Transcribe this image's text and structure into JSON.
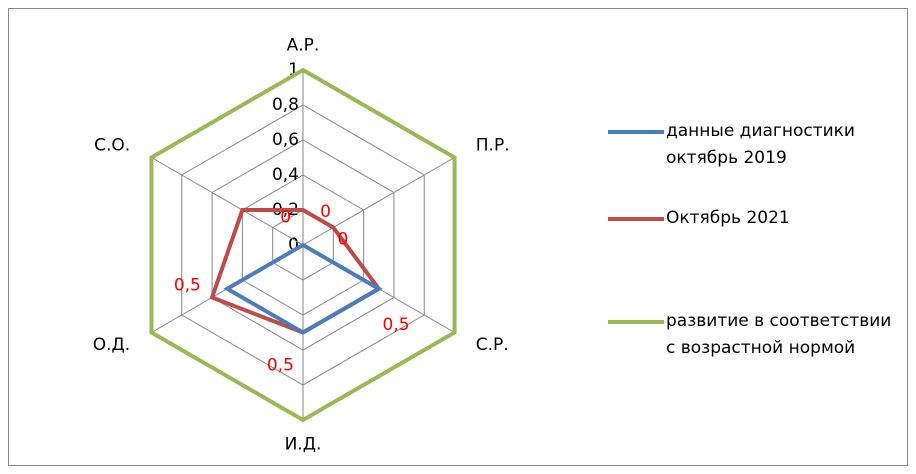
{
  "chart_data": {
    "type": "radar",
    "categories": [
      "А.Р.",
      "П.Р.",
      "С.Р.",
      "И.Д.",
      "О.Д.",
      "С.О."
    ],
    "series": [
      {
        "name": "данные диагностики октябрь 2019",
        "color": "#4a7ebb",
        "values": [
          0,
          0,
          0.5,
          0.5,
          0.5,
          0
        ],
        "value_labels": [
          "0",
          "0",
          "0,5",
          "0,5",
          "0,5",
          "0"
        ],
        "value_label_color": "#ff0000"
      },
      {
        "name": "Октябрь 2021",
        "color": "#be4b48",
        "values": [
          0.2,
          0.2,
          0.5,
          0.5,
          0.6,
          0.4
        ]
      },
      {
        "name": "развитие в соответствии с возрастной нормой",
        "color": "#98b954",
        "values": [
          1,
          1,
          1,
          1,
          1,
          1
        ]
      }
    ],
    "ylim": [
      0,
      1
    ],
    "yticks": [
      0,
      {
        "value": 0.2,
        "label": "0,2"
      },
      {
        "value": 0.4,
        "label": "0,4"
      },
      {
        "value": 0.6,
        "label": "0,6"
      },
      {
        "value": 0.8,
        "label": "0,8"
      },
      1
    ],
    "grid": true,
    "legend": "right"
  }
}
